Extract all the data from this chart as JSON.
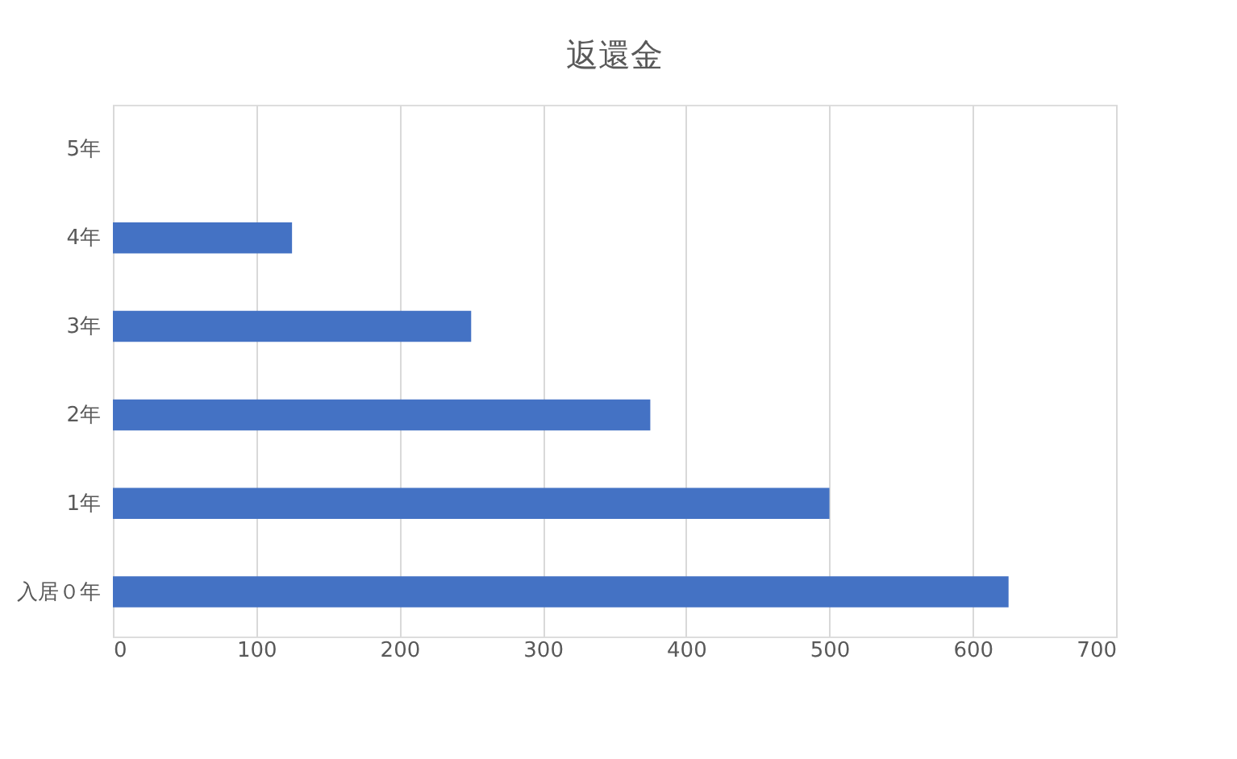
{
  "chart_data": {
    "type": "bar",
    "orientation": "horizontal",
    "title": "返還金",
    "categories": [
      "5年",
      "4年",
      "3年",
      "2年",
      "1年",
      "入居０年"
    ],
    "values": [
      0,
      125,
      250,
      375,
      500,
      625
    ],
    "color": "#4472c4",
    "xlim": [
      0,
      700
    ],
    "xticks": [
      0,
      100,
      200,
      300,
      400,
      500,
      600,
      700
    ],
    "grid": "x"
  }
}
